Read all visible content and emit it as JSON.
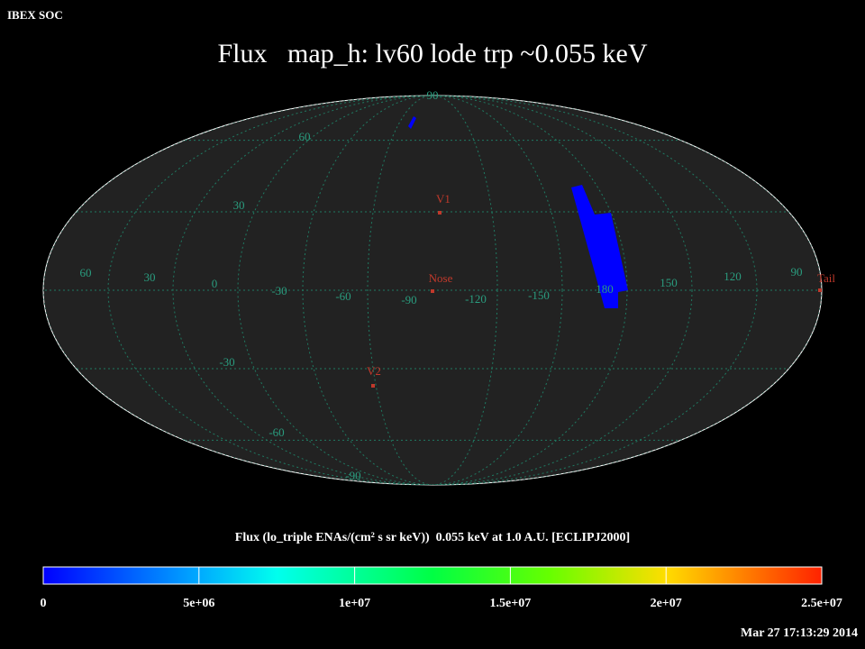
{
  "header": "IBEX SOC",
  "title": "Flux   map_h: lv60 lode trp ~0.055 keV",
  "latitude_labels": [
    "90",
    "60",
    "30",
    "-30",
    "-60",
    "-90"
  ],
  "longitude_labels": [
    "60",
    "30",
    "0",
    "-30",
    "-60",
    "-90",
    "-120",
    "-150",
    "180",
    "150",
    "120",
    "90"
  ],
  "markers": [
    "V1",
    "Nose",
    "V2",
    "Tail"
  ],
  "colorbar": {
    "label": "Flux (lo_triple ENAs/(cm² s sr keV))  0.055 keV at 1.0 A.U. [ECLIPJ2000]",
    "lim": [
      0,
      25000000
    ],
    "ticks": [
      0,
      {
        "value": 5000000,
        "label": "5e+06"
      },
      {
        "value": 10000000,
        "label": "1e+07"
      },
      {
        "value": 15000000,
        "label": "1.5e+07"
      },
      {
        "value": 20000000,
        "label": "2e+07"
      },
      {
        "value": 25000000,
        "label": "2.5e+07"
      }
    ]
  },
  "timestamp": "Mar 27 17:13:29 2014"
}
